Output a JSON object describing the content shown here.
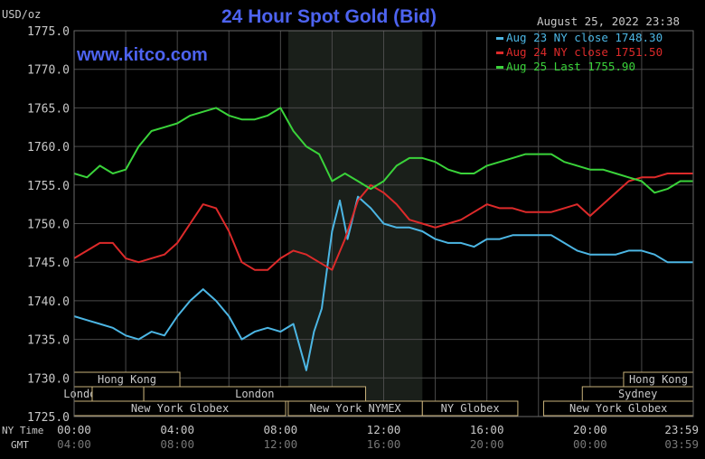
{
  "header": {
    "y_unit": "USD/oz",
    "title": "24 Hour Spot Gold (Bid)",
    "timestamp": "August 25, 2022 23:38",
    "watermark": "www.kitco.com"
  },
  "colors": {
    "background": "#000000",
    "grid": "#4a4a4a",
    "session_shade": "#1a1f1a",
    "title": "#4d63f0",
    "text": "#c8c8c8",
    "market_box": "#c9b27a",
    "aug23": "#4cb6e4",
    "aug24": "#dd2a2a",
    "aug25": "#3ad33a"
  },
  "footer": {
    "ny_label": "NY Time",
    "gmt_label": "GMT"
  },
  "chart_data": {
    "type": "line",
    "title": "24 Hour Spot Gold (Bid)",
    "ylabel": "USD/oz",
    "ylim": [
      1725,
      1775
    ],
    "yticks": [
      "1775.0",
      "1770.0",
      "1765.0",
      "1760.0",
      "1755.0",
      "1750.0",
      "1745.0",
      "1740.0",
      "1735.0",
      "1730.0",
      "1725.0"
    ],
    "xlim": [
      0,
      24
    ],
    "xticks": [
      {
        "ny": "00:00",
        "gmt": "04:00"
      },
      {
        "ny": "04:00",
        "gmt": "08:00"
      },
      {
        "ny": "08:00",
        "gmt": "12:00"
      },
      {
        "ny": "12:00",
        "gmt": "16:00"
      },
      {
        "ny": "16:00",
        "gmt": "20:00"
      },
      {
        "ny": "20:00",
        "gmt": "00:00"
      },
      {
        "ny": "23:59",
        "gmt": "03:59"
      }
    ],
    "shaded_session": [
      8.3,
      13.5
    ],
    "grid": true,
    "legend_position": "top-right",
    "series": [
      {
        "name": "Aug 23 NY close 1748.30",
        "color": "#4cb6e4",
        "x": [
          0,
          0.5,
          1,
          1.5,
          2,
          2.5,
          3,
          3.5,
          4,
          4.5,
          5,
          5.5,
          6,
          6.5,
          7,
          7.5,
          8,
          8.5,
          9,
          9.3,
          9.6,
          10,
          10.3,
          10.6,
          11,
          11.5,
          12,
          12.5,
          13,
          13.5,
          14,
          14.5,
          15,
          15.5,
          16,
          16.5,
          17,
          17.5,
          18,
          18.5,
          19,
          19.5,
          20,
          20.5,
          21,
          21.5,
          22,
          22.5,
          23,
          23.5,
          23.98
        ],
        "y": [
          1738,
          1737.5,
          1737,
          1736.5,
          1735.5,
          1735,
          1736,
          1735.5,
          1738,
          1740,
          1741.5,
          1740,
          1738,
          1735,
          1736,
          1736.5,
          1736,
          1737,
          1731,
          1736,
          1739,
          1749,
          1753,
          1748,
          1753.5,
          1752,
          1750,
          1749.5,
          1749.5,
          1749,
          1748,
          1747.5,
          1747.5,
          1747,
          1748,
          1748,
          1748.5,
          1748.5,
          1748.5,
          1748.5,
          1747.5,
          1746.5,
          1746,
          1746,
          1746,
          1746.5,
          1746.5,
          1746,
          1745,
          1745,
          1745
        ]
      },
      {
        "name": "Aug 24 NY close 1751.50",
        "color": "#dd2a2a",
        "x": [
          0,
          0.5,
          1,
          1.5,
          2,
          2.5,
          3,
          3.5,
          4,
          4.5,
          5,
          5.5,
          6,
          6.5,
          7,
          7.5,
          8,
          8.5,
          9,
          9.5,
          10,
          10.5,
          11,
          11.5,
          12,
          12.5,
          13,
          13.5,
          14,
          14.5,
          15,
          15.5,
          16,
          16.5,
          17,
          17.5,
          18,
          18.5,
          19,
          19.5,
          20,
          20.5,
          21,
          21.5,
          22,
          22.5,
          23,
          23.5,
          23.98
        ],
        "y": [
          1745.5,
          1746.5,
          1747.5,
          1747.5,
          1745.5,
          1745,
          1745.5,
          1746,
          1747.5,
          1750,
          1752.5,
          1752,
          1749,
          1745,
          1744,
          1744,
          1745.5,
          1746.5,
          1746,
          1745,
          1744,
          1748,
          1753,
          1755,
          1754,
          1752.5,
          1750.5,
          1750,
          1749.5,
          1750,
          1750.5,
          1751.5,
          1752.5,
          1752,
          1752,
          1751.5,
          1751.5,
          1751.5,
          1752,
          1752.5,
          1751,
          1752.5,
          1754,
          1755.5,
          1756,
          1756,
          1756.5,
          1756.5,
          1756.5
        ]
      },
      {
        "name": "Aug 25 Last 1755.90",
        "color": "#3ad33a",
        "x": [
          0,
          0.5,
          1,
          1.5,
          2,
          2.5,
          3,
          3.5,
          4,
          4.5,
          5,
          5.5,
          6,
          6.5,
          7,
          7.5,
          8,
          8.5,
          9,
          9.5,
          10,
          10.5,
          11,
          11.5,
          12,
          12.5,
          13,
          13.5,
          14,
          14.5,
          15,
          15.5,
          16,
          16.5,
          17,
          17.5,
          18,
          18.5,
          19,
          19.5,
          20,
          20.5,
          21,
          21.5,
          22,
          22.5,
          23,
          23.5,
          23.98
        ],
        "y": [
          1756.5,
          1756,
          1757.5,
          1756.5,
          1757,
          1760,
          1762,
          1762.5,
          1763,
          1764,
          1764.5,
          1765,
          1764,
          1763.5,
          1763.5,
          1764,
          1765,
          1762,
          1760,
          1759,
          1755.5,
          1756.5,
          1755.5,
          1754.5,
          1755.5,
          1757.5,
          1758.5,
          1758.5,
          1758,
          1757,
          1756.5,
          1756.5,
          1757.5,
          1758,
          1758.5,
          1759,
          1759,
          1759,
          1758,
          1757.5,
          1757,
          1757,
          1756.5,
          1756,
          1755.5,
          1754,
          1754.5,
          1755.5,
          1755.5
        ]
      }
    ],
    "market_sessions": [
      {
        "name": "Hong Kong",
        "row": 0,
        "start": 0,
        "end": 4.1
      },
      {
        "name": "Hong Kong",
        "row": 0,
        "start": 21.3,
        "end": 24
      },
      {
        "name": "London",
        "row": 1,
        "start": 0,
        "end": 0.7
      },
      {
        "name": "",
        "row": 1,
        "start": 0.7,
        "end": 2.7
      },
      {
        "name": "London",
        "row": 1,
        "start": 2.7,
        "end": 11.3
      },
      {
        "name": "Sydney",
        "row": 1,
        "start": 19.7,
        "end": 24
      },
      {
        "name": "New York Globex",
        "row": 2,
        "start": 0,
        "end": 8.2
      },
      {
        "name": "New York NYMEX",
        "row": 2,
        "start": 8.3,
        "end": 13.5
      },
      {
        "name": "NY Globex",
        "row": 2,
        "start": 13.5,
        "end": 17.2
      },
      {
        "name": "New York Globex",
        "row": 2,
        "start": 18.2,
        "end": 24
      }
    ]
  }
}
